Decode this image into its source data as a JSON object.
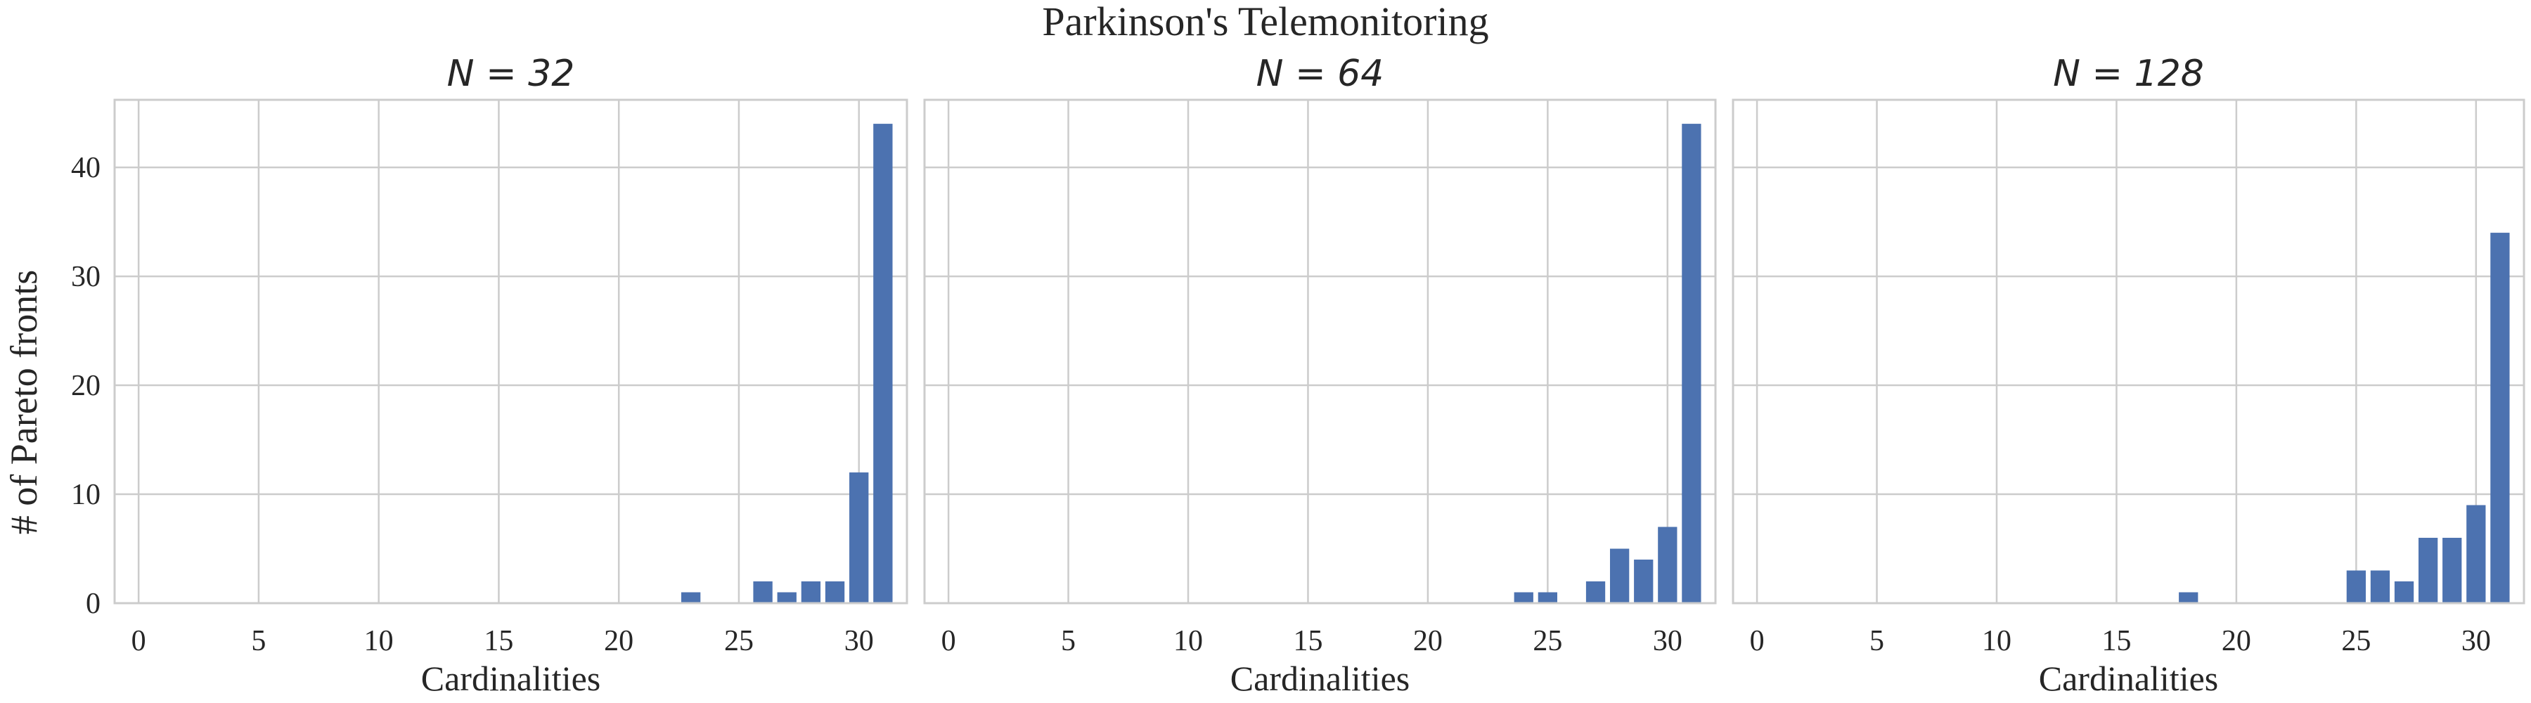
{
  "figure": {
    "suptitle": "Parkinson's Telemonitoring",
    "ylabel": "# of Pareto fronts"
  },
  "colors": {
    "bar": "#4c72b0",
    "grid": "#cccccc",
    "frame": "#cccccc",
    "text": "#262626"
  },
  "chart_data": [
    {
      "type": "bar",
      "title": "N = 32",
      "xlabel": "Cardinalities",
      "ylabel": "# of Pareto fronts",
      "x": [
        23,
        26,
        27,
        28,
        29,
        30,
        31
      ],
      "values": [
        1,
        2,
        1,
        2,
        2,
        12,
        44
      ],
      "xlim": [
        -1,
        32
      ],
      "ylim": [
        0,
        46.2
      ],
      "xticks": [
        0,
        5,
        10,
        15,
        20,
        25,
        30
      ],
      "yticks": [
        0,
        10,
        20,
        30,
        40
      ],
      "grid": true
    },
    {
      "type": "bar",
      "title": "N = 64",
      "xlabel": "Cardinalities",
      "x": [
        24,
        25,
        27,
        28,
        29,
        30,
        31
      ],
      "values": [
        1,
        1,
        2,
        5,
        4,
        7,
        44
      ],
      "xlim": [
        -1,
        32
      ],
      "ylim": [
        0,
        46.2
      ],
      "xticks": [
        0,
        5,
        10,
        15,
        20,
        25,
        30
      ],
      "yticks": [
        0,
        10,
        20,
        30,
        40
      ],
      "grid": true
    },
    {
      "type": "bar",
      "title": "N = 128",
      "xlabel": "Cardinalities",
      "x": [
        18,
        25,
        26,
        27,
        28,
        29,
        30,
        31
      ],
      "values": [
        1,
        3,
        3,
        2,
        6,
        6,
        9,
        34
      ],
      "xlim": [
        -1,
        32
      ],
      "ylim": [
        0,
        46.2
      ],
      "xticks": [
        0,
        5,
        10,
        15,
        20,
        25,
        30
      ],
      "yticks": [
        0,
        10,
        20,
        30,
        40
      ],
      "grid": true
    }
  ]
}
